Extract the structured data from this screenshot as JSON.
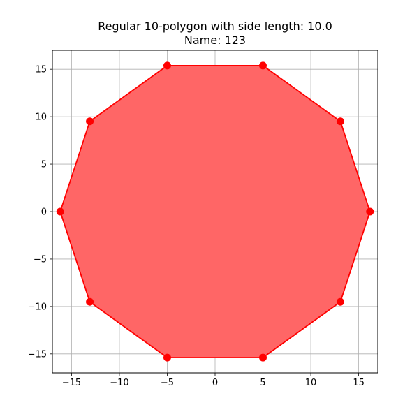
{
  "chart_data": {
    "type": "scatter",
    "title": "Regular 10-polygon with side length: 10.0",
    "subtitle": "Name: 123",
    "xlabel": "",
    "ylabel": "",
    "xlim": [
      -17.0,
      17.0
    ],
    "ylim": [
      -17.0,
      17.0
    ],
    "xticks": [
      -15,
      -10,
      -5,
      0,
      5,
      10,
      15
    ],
    "yticks": [
      -15,
      -10,
      -5,
      0,
      5,
      10,
      15
    ],
    "xtick_labels": [
      "−15",
      "−10",
      "−5",
      "0",
      "5",
      "10",
      "15"
    ],
    "ytick_labels": [
      "−15",
      "−10",
      "−5",
      "0",
      "5",
      "10",
      "15"
    ],
    "grid": true,
    "polygon": {
      "x": [
        16.18,
        13.09,
        5.0,
        -5.0,
        -13.09,
        -16.18,
        -13.09,
        -5.0,
        5.0,
        13.09
      ],
      "y": [
        0.0,
        9.51,
        15.39,
        15.39,
        9.51,
        0.0,
        -9.51,
        -15.39,
        -15.39,
        -9.51
      ]
    },
    "colors": {
      "fill": "#ff6666",
      "edge": "#ff0000",
      "marker": "#ff0000",
      "grid": "#b0b0b0"
    }
  }
}
